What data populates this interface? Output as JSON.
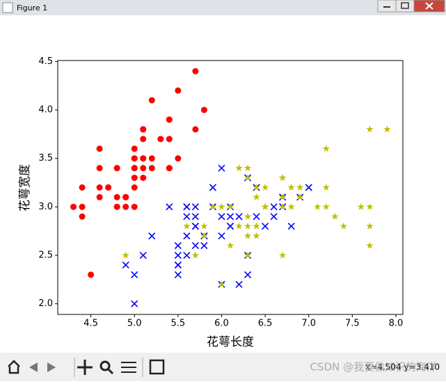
{
  "window": {
    "title": "Figure 1",
    "status": "x=4.504 y=3.410",
    "watermark": "CSDN @我要做知识的海洋"
  },
  "chart_data": {
    "type": "scatter",
    "xlabel": "花萼长度",
    "ylabel": "花萼宽度",
    "xlim": [
      4.12,
      8.08
    ],
    "ylim": [
      1.89,
      4.51
    ],
    "xticks": [
      4.5,
      {
        "value": 5,
        "label": "5.0"
      },
      5.5,
      {
        "value": 6,
        "label": "6.0"
      },
      6.5,
      {
        "value": 7,
        "label": "7.0"
      },
      7.5,
      {
        "value": 8,
        "label": "8.0"
      }
    ],
    "yticks": [
      {
        "value": 2,
        "label": "2.0"
      },
      2.5,
      {
        "value": 3,
        "label": "3.0"
      },
      3.5,
      {
        "value": 4,
        "label": "4.0"
      },
      4.5
    ],
    "series": [
      {
        "color": "#ff0000",
        "marker": "o",
        "x": [
          5.1,
          4.9,
          4.7,
          4.6,
          5.0,
          5.4,
          4.6,
          5.0,
          4.4,
          4.9,
          5.4,
          4.8,
          4.8,
          4.3,
          5.8,
          5.7,
          5.4,
          5.1,
          5.7,
          5.1,
          5.4,
          5.1,
          4.6,
          5.1,
          4.8,
          5.0,
          5.0,
          5.2,
          5.2,
          4.7,
          4.8,
          5.4,
          5.2,
          5.5,
          4.9,
          5.0,
          5.5,
          4.9,
          4.4,
          5.1,
          5.0,
          4.5,
          4.4,
          5.0,
          5.1,
          4.8,
          5.1,
          4.6,
          5.3,
          5.0
        ],
        "values": [
          3.5,
          3.0,
          3.2,
          3.1,
          3.6,
          3.9,
          3.4,
          3.4,
          2.9,
          3.1,
          3.7,
          3.4,
          3.0,
          3.0,
          4.0,
          4.4,
          3.9,
          3.5,
          3.8,
          3.8,
          3.4,
          3.7,
          3.6,
          3.3,
          3.4,
          3.0,
          3.4,
          3.5,
          3.4,
          3.2,
          3.1,
          3.4,
          4.1,
          4.2,
          3.1,
          3.2,
          3.5,
          3.1,
          3.0,
          3.4,
          3.5,
          2.3,
          3.2,
          3.5,
          3.8,
          3.0,
          3.8,
          3.2,
          3.7,
          3.3
        ]
      },
      {
        "color": "#0000ff",
        "marker": "x",
        "x": [
          7.0,
          6.4,
          6.9,
          5.5,
          6.5,
          5.7,
          6.3,
          4.9,
          6.6,
          5.2,
          5.0,
          5.9,
          6.0,
          6.1,
          5.6,
          6.7,
          5.6,
          5.8,
          6.2,
          5.6,
          5.9,
          6.1,
          6.3,
          6.1,
          6.4,
          6.6,
          6.8,
          6.7,
          6.0,
          5.7,
          5.5,
          5.5,
          5.8,
          6.0,
          5.4,
          6.0,
          6.7,
          6.3,
          5.6,
          5.5,
          5.5,
          6.1,
          5.8,
          5.0,
          5.6,
          5.7,
          5.7,
          6.2,
          5.1,
          5.7
        ],
        "values": [
          3.2,
          3.2,
          3.1,
          2.3,
          2.8,
          2.8,
          3.3,
          2.4,
          2.9,
          2.7,
          2.0,
          3.0,
          2.2,
          2.9,
          2.9,
          3.1,
          3.0,
          2.7,
          2.2,
          2.5,
          3.2,
          2.8,
          2.5,
          2.8,
          2.9,
          3.0,
          2.8,
          3.0,
          2.9,
          2.6,
          2.4,
          2.4,
          2.7,
          2.7,
          3.0,
          3.4,
          3.1,
          2.3,
          3.0,
          2.5,
          2.6,
          3.0,
          2.6,
          2.3,
          2.7,
          3.0,
          2.9,
          2.9,
          2.5,
          2.8
        ]
      },
      {
        "color": "#bfbf00",
        "marker": "*",
        "x": [
          6.3,
          5.8,
          7.1,
          6.3,
          6.5,
          7.6,
          4.9,
          7.3,
          6.7,
          7.2,
          6.5,
          6.4,
          6.8,
          5.7,
          5.8,
          6.4,
          6.5,
          7.7,
          7.7,
          6.0,
          6.9,
          5.6,
          7.7,
          6.3,
          6.7,
          7.2,
          6.2,
          6.1,
          6.4,
          7.2,
          7.4,
          7.9,
          6.4,
          6.3,
          6.1,
          7.7,
          6.3,
          6.4,
          6.0,
          6.9,
          6.7,
          6.9,
          5.8,
          6.8,
          6.7,
          6.7,
          6.3,
          6.5,
          6.2,
          5.9
        ],
        "values": [
          3.3,
          2.7,
          3.0,
          2.9,
          3.0,
          3.0,
          2.5,
          2.9,
          2.5,
          3.6,
          3.2,
          2.7,
          3.0,
          2.5,
          2.8,
          3.2,
          3.0,
          3.8,
          2.6,
          2.2,
          3.2,
          2.8,
          2.8,
          2.7,
          3.3,
          3.2,
          2.8,
          3.0,
          2.8,
          3.0,
          2.8,
          3.8,
          2.8,
          2.8,
          2.6,
          3.0,
          3.4,
          3.1,
          3.0,
          3.1,
          3.1,
          3.1,
          2.7,
          3.2,
          3.3,
          3.0,
          2.5,
          3.0,
          3.4,
          3.0
        ]
      }
    ]
  }
}
